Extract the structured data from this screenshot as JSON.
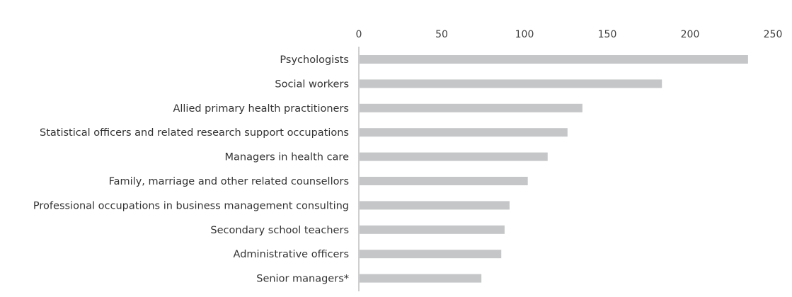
{
  "chart_data": {
    "type": "bar",
    "orientation": "horizontal",
    "title": "",
    "xlabel": "",
    "ylabel": "",
    "xlim": [
      0,
      250
    ],
    "x_ticks": [
      0,
      50,
      100,
      150,
      200,
      250
    ],
    "x_axis_position": "top",
    "grid": false,
    "legend": "none",
    "categories": [
      "Psychologists",
      "Social workers",
      "Allied primary health practitioners",
      "Statistical officers and related research support occupations",
      "Managers in health care",
      "Family, marriage and other related counsellors",
      "Professional occupations in business management consulting",
      "Secondary school teachers",
      "Administrative officers",
      "Senior managers*"
    ],
    "values": [
      235,
      183,
      135,
      126,
      114,
      102,
      91,
      88,
      86,
      74
    ],
    "colors": {
      "bar": "#c4c6c8",
      "axis": "#bfbfbf",
      "text": "#333333"
    }
  }
}
